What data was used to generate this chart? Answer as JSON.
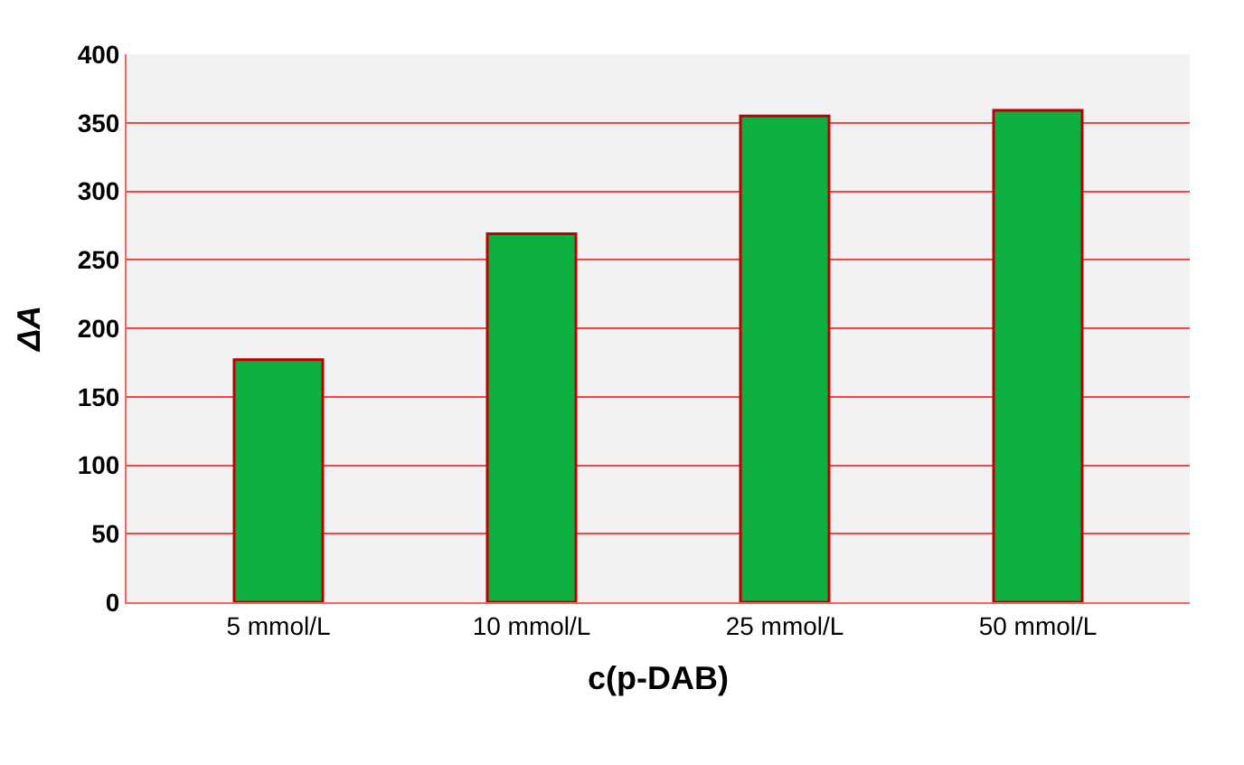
{
  "chart_data": {
    "type": "bar",
    "xlabel": "c(p-DAB)",
    "ylabel": "ΔA",
    "categories": [
      "5 mmol/L",
      "10 mmol/L",
      "25 mmol/L",
      "50 mmol/L"
    ],
    "values": [
      177,
      269,
      355,
      359
    ],
    "color": "#0bb040",
    "ylim": [
      0,
      400
    ],
    "yticks": [
      0,
      50,
      100,
      150,
      200,
      250,
      300,
      350,
      400
    ],
    "grid": "y"
  }
}
